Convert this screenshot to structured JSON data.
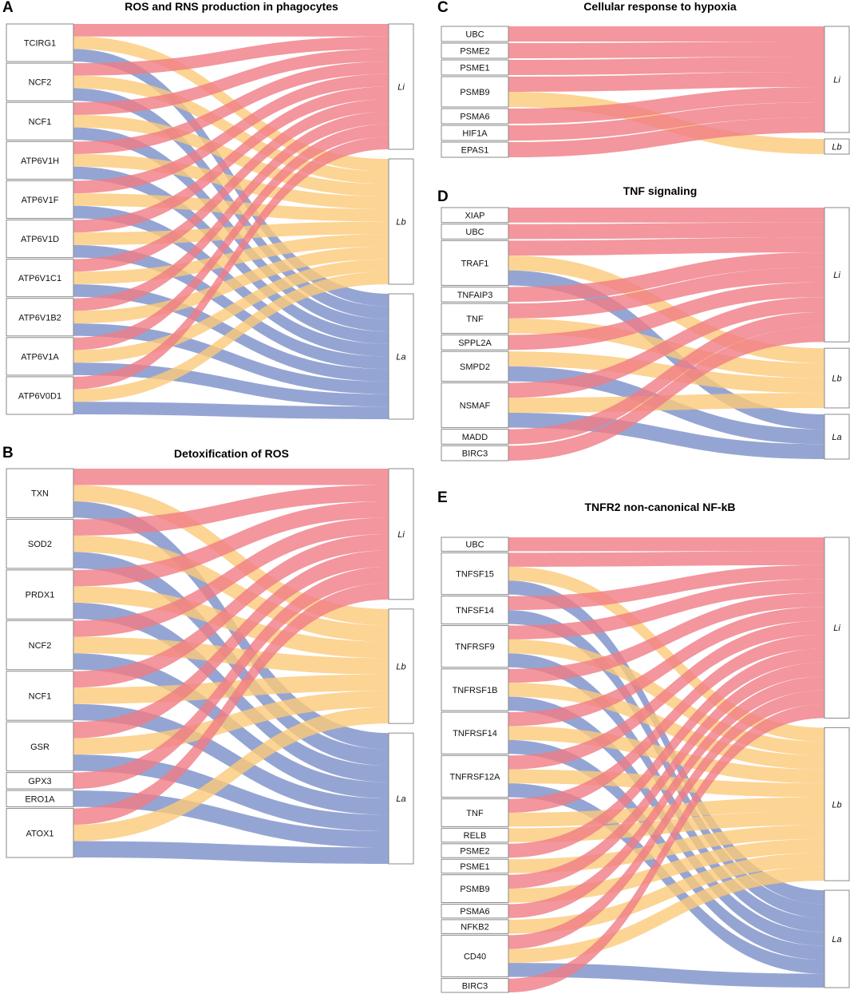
{
  "colors": {
    "Li": "#f07c84",
    "Lb": "#fbc979",
    "La": "#7b8fc8"
  },
  "panels": [
    {
      "id": "A",
      "label": "A",
      "title": "ROS and RNS production in phagocytes",
      "targets": [
        {
          "key": "Li",
          "label": "Li"
        },
        {
          "key": "Lb",
          "label": "Lb"
        },
        {
          "key": "La",
          "label": "La"
        }
      ],
      "sources": [
        {
          "label": "TCIRG1",
          "flows": [
            {
              "to": "Li",
              "w": 1
            },
            {
              "to": "Lb",
              "w": 1
            },
            {
              "to": "La",
              "w": 1
            }
          ]
        },
        {
          "label": "NCF2",
          "flows": [
            {
              "to": "Li",
              "w": 1
            },
            {
              "to": "Lb",
              "w": 1
            },
            {
              "to": "La",
              "w": 1
            }
          ]
        },
        {
          "label": "NCF1",
          "flows": [
            {
              "to": "Li",
              "w": 1
            },
            {
              "to": "Lb",
              "w": 1
            },
            {
              "to": "La",
              "w": 1
            }
          ]
        },
        {
          "label": "ATP6V1H",
          "flows": [
            {
              "to": "Li",
              "w": 1
            },
            {
              "to": "Lb",
              "w": 1
            },
            {
              "to": "La",
              "w": 1
            }
          ]
        },
        {
          "label": "ATP6V1F",
          "flows": [
            {
              "to": "Li",
              "w": 1
            },
            {
              "to": "Lb",
              "w": 1
            },
            {
              "to": "La",
              "w": 1
            }
          ]
        },
        {
          "label": "ATP6V1D",
          "flows": [
            {
              "to": "Li",
              "w": 1
            },
            {
              "to": "Lb",
              "w": 1
            },
            {
              "to": "La",
              "w": 1
            }
          ]
        },
        {
          "label": "ATP6V1C1",
          "flows": [
            {
              "to": "Li",
              "w": 1
            },
            {
              "to": "Lb",
              "w": 1
            },
            {
              "to": "La",
              "w": 1
            }
          ]
        },
        {
          "label": "ATP6V1B2",
          "flows": [
            {
              "to": "Li",
              "w": 1
            },
            {
              "to": "Lb",
              "w": 1
            },
            {
              "to": "La",
              "w": 1
            }
          ]
        },
        {
          "label": "ATP6V1A",
          "flows": [
            {
              "to": "Li",
              "w": 1
            },
            {
              "to": "Lb",
              "w": 1
            },
            {
              "to": "La",
              "w": 1
            }
          ]
        },
        {
          "label": "ATP6V0D1",
          "flows": [
            {
              "to": "Li",
              "w": 1
            },
            {
              "to": "Lb",
              "w": 1
            },
            {
              "to": "La",
              "w": 1
            }
          ]
        }
      ]
    },
    {
      "id": "B",
      "label": "B",
      "title": "Detoxification of ROS",
      "targets": [
        {
          "key": "Li",
          "label": "Li"
        },
        {
          "key": "Lb",
          "label": "Lb"
        },
        {
          "key": "La",
          "label": "La"
        }
      ],
      "sources": [
        {
          "label": "TXN",
          "flows": [
            {
              "to": "Li",
              "w": 1
            },
            {
              "to": "Lb",
              "w": 1
            },
            {
              "to": "La",
              "w": 1
            }
          ]
        },
        {
          "label": "SOD2",
          "flows": [
            {
              "to": "Li",
              "w": 1
            },
            {
              "to": "Lb",
              "w": 1
            },
            {
              "to": "La",
              "w": 1
            }
          ]
        },
        {
          "label": "PRDX1",
          "flows": [
            {
              "to": "Li",
              "w": 1
            },
            {
              "to": "Lb",
              "w": 1
            },
            {
              "to": "La",
              "w": 1
            }
          ]
        },
        {
          "label": "NCF2",
          "flows": [
            {
              "to": "Li",
              "w": 1
            },
            {
              "to": "Lb",
              "w": 1
            },
            {
              "to": "La",
              "w": 1
            }
          ]
        },
        {
          "label": "NCF1",
          "flows": [
            {
              "to": "Li",
              "w": 1
            },
            {
              "to": "Lb",
              "w": 1
            },
            {
              "to": "La",
              "w": 1
            }
          ]
        },
        {
          "label": "GSR",
          "flows": [
            {
              "to": "Li",
              "w": 1
            },
            {
              "to": "Lb",
              "w": 1
            },
            {
              "to": "La",
              "w": 1
            }
          ]
        },
        {
          "label": "GPX3",
          "flows": [
            {
              "to": "Li",
              "w": 1
            }
          ]
        },
        {
          "label": "ERO1A",
          "flows": [
            {
              "to": "La",
              "w": 1
            }
          ]
        },
        {
          "label": "ATOX1",
          "flows": [
            {
              "to": "Li",
              "w": 1
            },
            {
              "to": "Lb",
              "w": 1
            },
            {
              "to": "La",
              "w": 1
            }
          ]
        }
      ]
    },
    {
      "id": "C",
      "label": "C",
      "title": "Cellular response to hypoxia",
      "targets": [
        {
          "key": "Li",
          "label": "Li"
        },
        {
          "key": "Lb",
          "label": "Lb"
        }
      ],
      "sources": [
        {
          "label": "UBC",
          "flows": [
            {
              "to": "Li",
              "w": 1
            }
          ]
        },
        {
          "label": "PSME2",
          "flows": [
            {
              "to": "Li",
              "w": 1
            }
          ]
        },
        {
          "label": "PSME1",
          "flows": [
            {
              "to": "Li",
              "w": 1
            }
          ]
        },
        {
          "label": "PSMB9",
          "flows": [
            {
              "to": "Li",
              "w": 1
            },
            {
              "to": "Lb",
              "w": 1
            }
          ]
        },
        {
          "label": "PSMA6",
          "flows": [
            {
              "to": "Li",
              "w": 1
            }
          ]
        },
        {
          "label": "HIF1A",
          "flows": [
            {
              "to": "Li",
              "w": 1
            }
          ]
        },
        {
          "label": "EPAS1",
          "flows": [
            {
              "to": "Li",
              "w": 1
            }
          ]
        }
      ]
    },
    {
      "id": "D",
      "label": "D",
      "title": "TNF signaling",
      "targets": [
        {
          "key": "Li",
          "label": "Li"
        },
        {
          "key": "Lb",
          "label": "Lb"
        },
        {
          "key": "La",
          "label": "La"
        }
      ],
      "sources": [
        {
          "label": "XIAP",
          "flows": [
            {
              "to": "Li",
              "w": 1
            }
          ]
        },
        {
          "label": "UBC",
          "flows": [
            {
              "to": "Li",
              "w": 1
            }
          ]
        },
        {
          "label": "TRAF1",
          "flows": [
            {
              "to": "Li",
              "w": 1
            },
            {
              "to": "Lb",
              "w": 1
            },
            {
              "to": "La",
              "w": 1
            }
          ]
        },
        {
          "label": "TNFAIP3",
          "flows": [
            {
              "to": "Li",
              "w": 1
            }
          ]
        },
        {
          "label": "TNF",
          "flows": [
            {
              "to": "Li",
              "w": 1
            },
            {
              "to": "Lb",
              "w": 1
            }
          ]
        },
        {
          "label": "SPPL2A",
          "flows": [
            {
              "to": "Li",
              "w": 1
            }
          ]
        },
        {
          "label": "SMPD2",
          "flows": [
            {
              "to": "Lb",
              "w": 1
            },
            {
              "to": "La",
              "w": 1
            }
          ]
        },
        {
          "label": "NSMAF",
          "flows": [
            {
              "to": "Li",
              "w": 1
            },
            {
              "to": "Lb",
              "w": 1
            },
            {
              "to": "La",
              "w": 1
            }
          ]
        },
        {
          "label": "MADD",
          "flows": [
            {
              "to": "Li",
              "w": 1
            }
          ]
        },
        {
          "label": "BIRC3",
          "flows": [
            {
              "to": "Li",
              "w": 1
            }
          ]
        }
      ]
    },
    {
      "id": "E",
      "label": "E",
      "title": "TNFR2 non-canonical NF-kB",
      "targets": [
        {
          "key": "Li",
          "label": "Li"
        },
        {
          "key": "Lb",
          "label": "Lb"
        },
        {
          "key": "La",
          "label": "La"
        }
      ],
      "sources": [
        {
          "label": "UBC",
          "flows": [
            {
              "to": "Li",
              "w": 1
            }
          ]
        },
        {
          "label": "TNFSF15",
          "flows": [
            {
              "to": "Li",
              "w": 1
            },
            {
              "to": "Lb",
              "w": 1
            },
            {
              "to": "La",
              "w": 1
            }
          ]
        },
        {
          "label": "TNFSF14",
          "flows": [
            {
              "to": "Li",
              "w": 1
            },
            {
              "to": "La",
              "w": 1
            }
          ]
        },
        {
          "label": "TNFRSF9",
          "flows": [
            {
              "to": "Li",
              "w": 1
            },
            {
              "to": "Lb",
              "w": 1
            },
            {
              "to": "La",
              "w": 1
            }
          ]
        },
        {
          "label": "TNFRSF1B",
          "flows": [
            {
              "to": "Li",
              "w": 1
            },
            {
              "to": "Lb",
              "w": 1
            },
            {
              "to": "La",
              "w": 1
            }
          ]
        },
        {
          "label": "TNFRSF14",
          "flows": [
            {
              "to": "Li",
              "w": 1
            },
            {
              "to": "Lb",
              "w": 1
            },
            {
              "to": "La",
              "w": 1
            }
          ]
        },
        {
          "label": "TNFRSF12A",
          "flows": [
            {
              "to": "Li",
              "w": 1
            },
            {
              "to": "Lb",
              "w": 1
            },
            {
              "to": "La",
              "w": 1
            }
          ]
        },
        {
          "label": "TNF",
          "flows": [
            {
              "to": "Li",
              "w": 1
            },
            {
              "to": "Lb",
              "w": 1
            }
          ]
        },
        {
          "label": "RELB",
          "flows": [
            {
              "to": "Lb",
              "w": 1
            }
          ]
        },
        {
          "label": "PSME2",
          "flows": [
            {
              "to": "Li",
              "w": 1
            }
          ]
        },
        {
          "label": "PSME1",
          "flows": [
            {
              "to": "Lb",
              "w": 1
            }
          ]
        },
        {
          "label": "PSMB9",
          "flows": [
            {
              "to": "Li",
              "w": 1
            },
            {
              "to": "Lb",
              "w": 1
            }
          ]
        },
        {
          "label": "PSMA6",
          "flows": [
            {
              "to": "Li",
              "w": 1
            }
          ]
        },
        {
          "label": "NFKB2",
          "flows": [
            {
              "to": "Lb",
              "w": 1
            }
          ]
        },
        {
          "label": "CD40",
          "flows": [
            {
              "to": "Li",
              "w": 1
            },
            {
              "to": "Lb",
              "w": 1
            },
            {
              "to": "La",
              "w": 1
            }
          ]
        },
        {
          "label": "BIRC3",
          "flows": [
            {
              "to": "Li",
              "w": 1
            }
          ]
        }
      ]
    }
  ]
}
